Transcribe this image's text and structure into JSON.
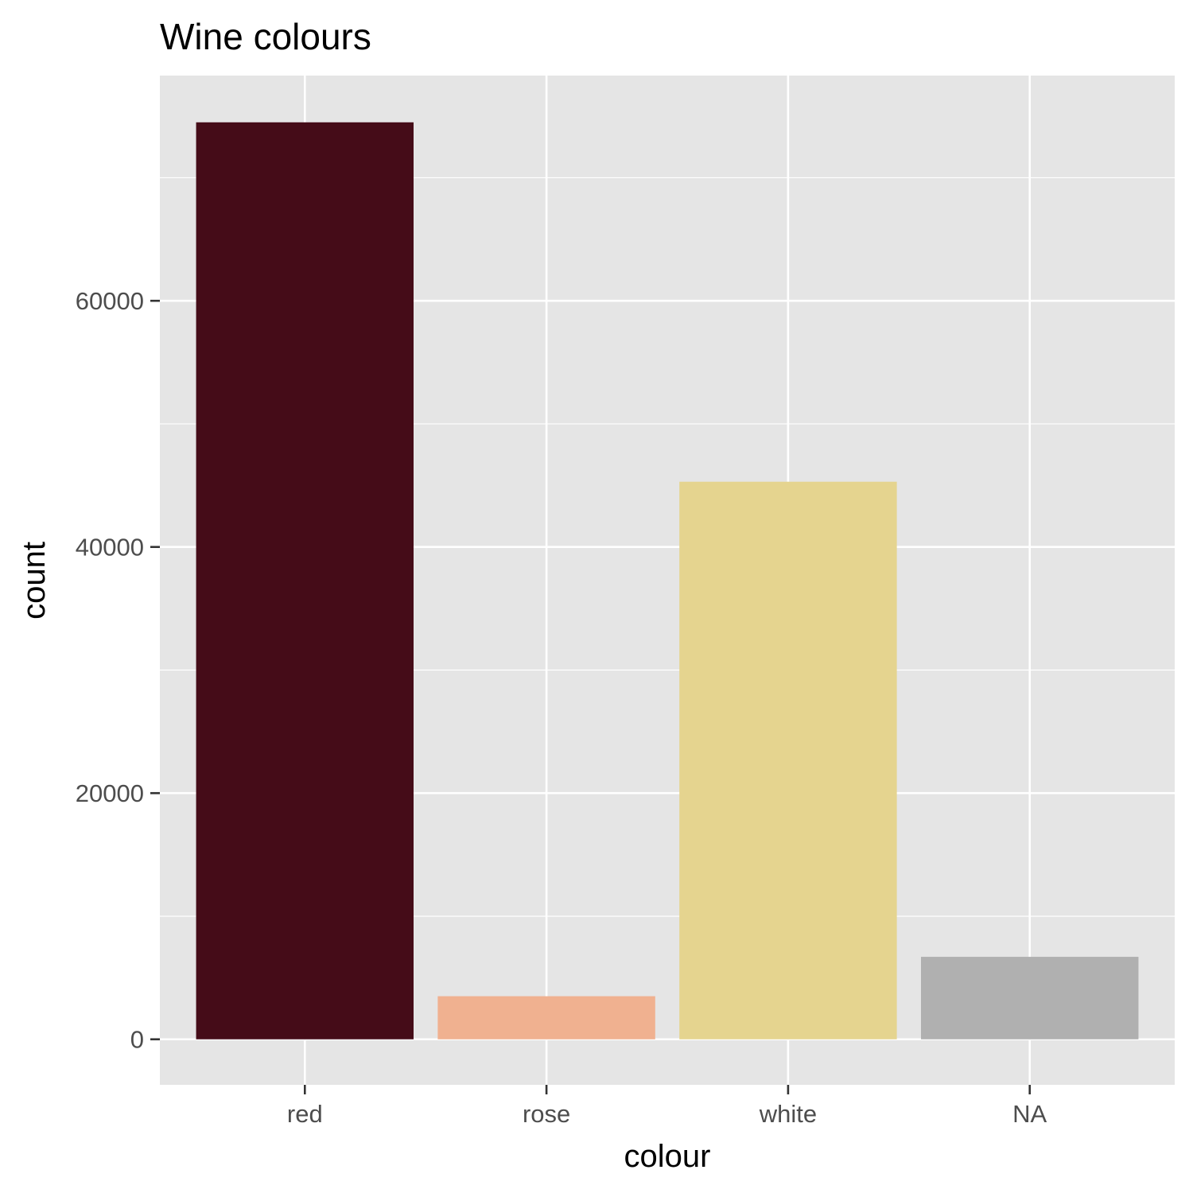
{
  "chart_data": {
    "type": "bar",
    "title": "Wine colours",
    "xlabel": "colour",
    "ylabel": "count",
    "categories": [
      "red",
      "rose",
      "white",
      "NA"
    ],
    "values": [
      74500,
      3500,
      45300,
      6700
    ],
    "colors": [
      "#450c18",
      "#f0b190",
      "#e5d48f",
      "#b0b0b0"
    ],
    "ylim": [
      -3700,
      78300
    ],
    "yticks": [
      0,
      20000,
      40000,
      60000
    ],
    "y_minor_ticks": [
      10000,
      30000,
      50000,
      70000
    ],
    "grid": true,
    "legend": "none"
  },
  "colors": {
    "panel_background": "#e5e5e5",
    "grid": "#ffffff",
    "axis_ticks": "#333333"
  }
}
